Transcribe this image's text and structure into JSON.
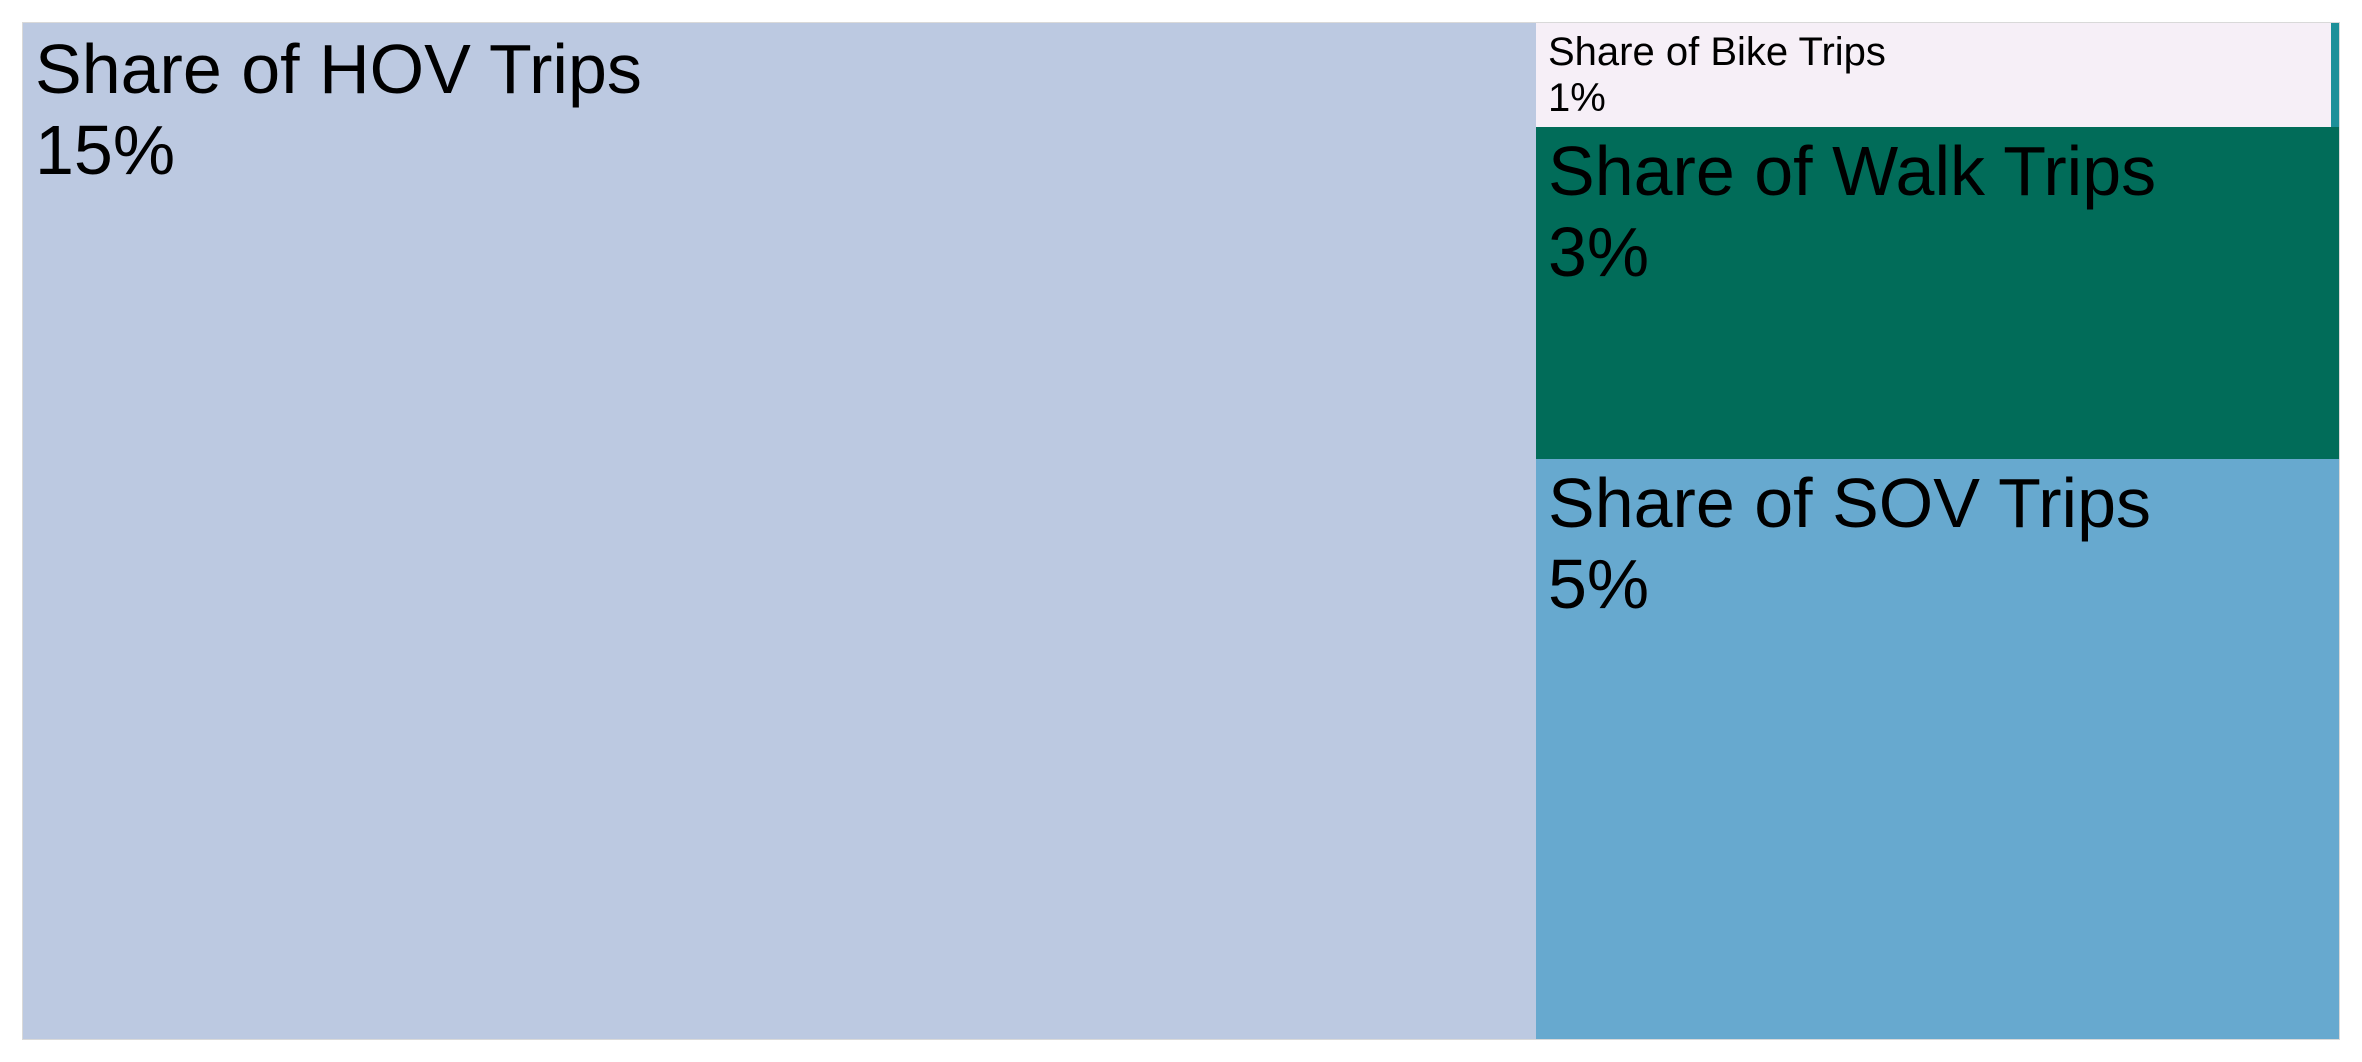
{
  "chart_data": {
    "type": "treemap",
    "title": "",
    "items": [
      {
        "label": "Share of HOV Trips",
        "value": 15,
        "display": "15%",
        "color": "#bcc9e1"
      },
      {
        "label": "Share of SOV Trips",
        "value": 5,
        "display": "5%",
        "color": "#67a9cf"
      },
      {
        "label": "Share of Walk Trips",
        "value": 3,
        "display": "3%",
        "color": "#016c59"
      },
      {
        "label": "Share of Bike Trips",
        "value": 1,
        "display": "1%",
        "color": "#f6eff7"
      },
      {
        "label": "",
        "value": 0.1,
        "display": "",
        "color": "#1c9099"
      }
    ]
  }
}
